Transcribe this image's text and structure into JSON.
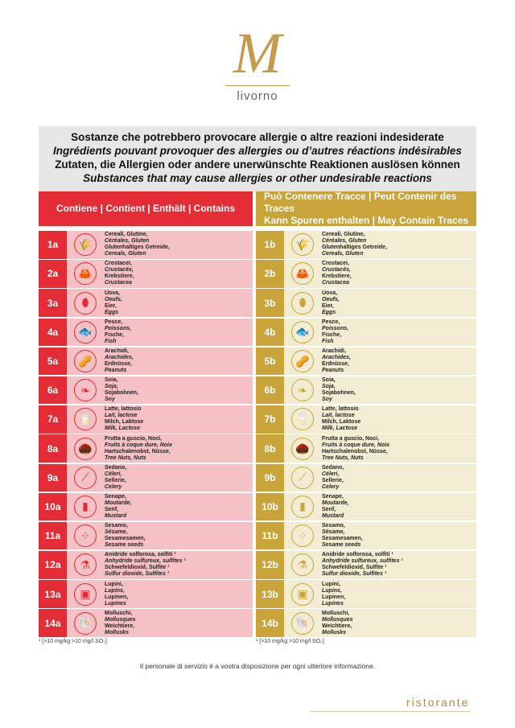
{
  "logo": {
    "letter": "M",
    "name": "livorno"
  },
  "title": {
    "it": "Sostanze che potrebbero provocare allergie o altre reazioni indesiderate",
    "fr": "Ingrédients pouvant provoquer des allergies ou d’autres réactions indésirables",
    "de": "Zutaten, die Allergien oder andere unerwünschte Reaktionen auslösen können",
    "en": "Substances that may cause allergies or other undesirable reactions"
  },
  "contains": {
    "header1": "Contiene | Contient | Enthält | Contains",
    "header2": ""
  },
  "traces": {
    "header1": "Può Contenere Tracce | Peut Contenir des Traces",
    "header2": "Kann Spuren enthalten | May Contain Traces"
  },
  "colors": {
    "red": "#e42c37",
    "pink": "#f6c1c4",
    "gold": "#c9a43a",
    "cream": "#f2ecd2"
  },
  "allergens": [
    {
      "a": "1a",
      "b": "1b",
      "icon": "wheat-icon",
      "glyph": "🌾",
      "it": "Cereali, Glutine,",
      "fr": "Céréales, Gluten",
      "de": "Glutenhaltiges Getreide,",
      "en": "Cereals, Gluten"
    },
    {
      "a": "2a",
      "b": "2b",
      "icon": "crab-icon",
      "glyph": "🦀",
      "it": "Crostacei,",
      "fr": "Crustacés,",
      "de": "Krebstiere,",
      "en": "Crustacea"
    },
    {
      "a": "3a",
      "b": "3b",
      "icon": "egg-icon",
      "glyph": "⬮",
      "it": "Uova,",
      "fr": "Oeufs,",
      "de": "Eier,",
      "en": "Eggs"
    },
    {
      "a": "4a",
      "b": "4b",
      "icon": "fish-icon",
      "glyph": "🐟",
      "it": "Pesce,",
      "fr": "Poissons,",
      "de": "Fische,",
      "en": "Fish"
    },
    {
      "a": "5a",
      "b": "5b",
      "icon": "peanut-icon",
      "glyph": "🥜",
      "it": "Arachidi,",
      "fr": "Arachides,",
      "de": "Erdnüsse,",
      "en": "Peanuts"
    },
    {
      "a": "6a",
      "b": "6b",
      "icon": "soy-icon",
      "glyph": "❧",
      "it": "Soia,",
      "fr": "Soja,",
      "de": "Sojabohnen,",
      "en": "Soy"
    },
    {
      "a": "7a",
      "b": "7b",
      "icon": "milk-icon",
      "glyph": "🥛",
      "it": "Latte, lattosio",
      "fr": "Lait, lactose",
      "de": "Milch, Laktose",
      "en": "Milk, Lactose"
    },
    {
      "a": "8a",
      "b": "8b",
      "icon": "nut-icon",
      "glyph": "🌰",
      "it": "Frutta a guscio, Noci,",
      "fr": "Fruits à coque dure, Noix",
      "de": "Hartschalenobst, Nüsse,",
      "en": "Tree Nuts, Nuts"
    },
    {
      "a": "9a",
      "b": "9b",
      "icon": "celery-icon",
      "glyph": "⟋",
      "it": "Sedano,",
      "fr": "Céleri,",
      "de": "Sellerie,",
      "en": "Celery"
    },
    {
      "a": "10a",
      "b": "10b",
      "icon": "mustard-icon",
      "glyph": "▮",
      "it": "Senape,",
      "fr": "Moutarde,",
      "de": "Senf,",
      "en": "Mustard"
    },
    {
      "a": "11a",
      "b": "11b",
      "icon": "sesame-icon",
      "glyph": "⁘",
      "it": "Sesamo,",
      "fr": "Sésame,",
      "de": "Sesamesamen,",
      "en": "Sesame seeds"
    },
    {
      "a": "12a",
      "b": "12b",
      "icon": "flask-icon",
      "glyph": "⚗",
      "it": "Anidride solforosa, solfiti ¹",
      "fr": "Anhydride sulfureux, sulfites ¹",
      "de": "Schwefeldioxid, Sulfite ¹",
      "en": "Sulfur dioxide, Sulfites ¹"
    },
    {
      "a": "13a",
      "b": "13b",
      "icon": "lupin-icon",
      "glyph": "▣",
      "it": "Lupini,",
      "fr": "Lupins,",
      "de": "Lupinen,",
      "en": "Lupines"
    },
    {
      "a": "14a",
      "b": "14b",
      "icon": "shell-icon",
      "glyph": "🐚",
      "it": "Molluschi,",
      "fr": "Mollusques",
      "de": "Weichtiere,",
      "en": "Mollusks"
    }
  ],
  "footnote": "¹ [>10 mg/kg >10 mg/l SO₂]",
  "info": "Il personale di servizio è a vostra disposizione per ogni ulteriore informazione.",
  "footer_brand": "ristorante"
}
